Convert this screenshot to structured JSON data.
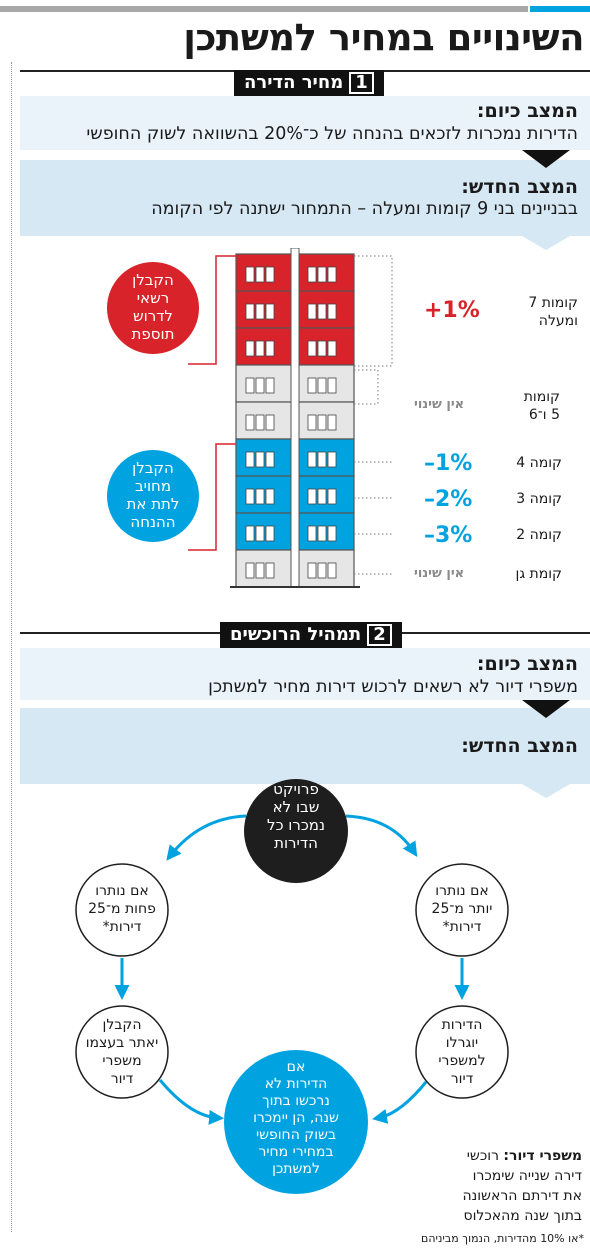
{
  "title": "השינויים במחיר למשתכן",
  "section1": {
    "number": "1",
    "name": "מחיר הדירה",
    "current_heading": "המצב כיום:",
    "current_text": "הדירות נמכרות לזכאים בהנחה של כ־20% בהשוואה לשוק החופשי",
    "new_heading": "המצב החדש:",
    "new_text": "בבניינים בני 9 קומות ומעלה – התמחור ישתנה לפי הקומה",
    "callout_top": [
      "הקבלן",
      "רשאי",
      "לדרוש",
      "תוספת"
    ],
    "callout_bottom": [
      "הקבלן",
      "מחויב",
      "לתת את",
      "ההנחה"
    ],
    "rows": [
      {
        "label": [
          "קומות 7",
          "ומעלה"
        ],
        "change": "+1%"
      },
      {
        "label": [
          "קומות",
          "5 ו־6"
        ],
        "change": "אין שינוי"
      },
      {
        "label": [
          "קומה 4"
        ],
        "change": "–1%"
      },
      {
        "label": [
          "קומה 3"
        ],
        "change": "–2%"
      },
      {
        "label": [
          "קומה 2"
        ],
        "change": "–3%"
      },
      {
        "label": [
          "קומת גן"
        ],
        "change": "אין שינוי"
      }
    ],
    "colors": {
      "red": "#d8232a",
      "blue": "#00a3e0",
      "gray": "#e6e6e6"
    }
  },
  "section2": {
    "number": "2",
    "name": "תמהיל הרוכשים",
    "current_heading": "המצב כיום:",
    "current_text": "משפרי דיור לא רשאים לרכוש דירות מחיר למשתכן",
    "new_heading": "המצב החדש:",
    "center": [
      "פרויקט",
      "שבו לא",
      "נמכרו כל",
      "הדירות"
    ],
    "left_top": [
      "אם נותרו",
      "פחות מ־25",
      "דירות*"
    ],
    "right_top": [
      "אם נותרו",
      "יותר מ־25",
      "דירות*"
    ],
    "left_bottom": [
      "הקבלן",
      "יאתר בעצמו",
      "משפרי",
      "דיור"
    ],
    "right_bottom": [
      "הדירות",
      "יוגרלו",
      "למשפרי",
      "דיור"
    ],
    "bottom": [
      "אם",
      "הדירות לא",
      "נרכשו בתוך",
      "שנה, הן יימכרו",
      "בשוק החופשי",
      "במחירי מחיר",
      "למשתכן"
    ],
    "legend_term": "משפרי דיור:",
    "legend_text": [
      "רוכשי",
      "דירה שנייה שימכרו",
      "את דירתם הראשונה",
      "בתוך שנה מהאכלוס"
    ]
  },
  "footnote": "*או 10% מהדירות, הנמוך מביניהם"
}
